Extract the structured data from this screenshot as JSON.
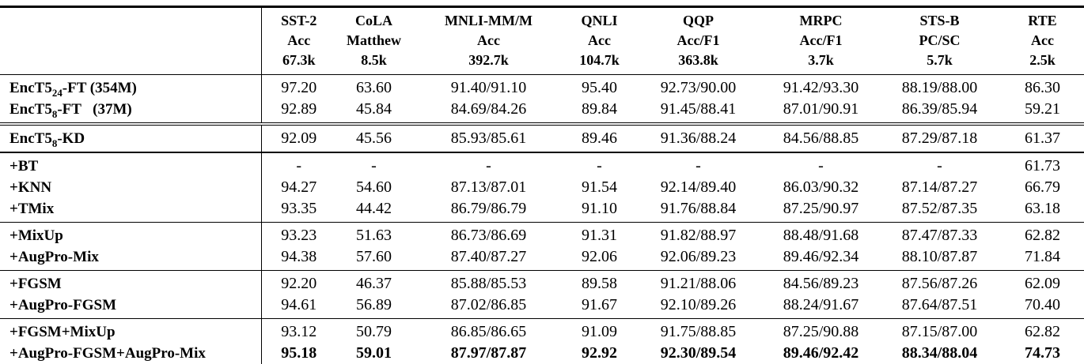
{
  "table": {
    "columns": [
      {
        "name": "SST-2",
        "metric": "Acc",
        "size": "67.3k"
      },
      {
        "name": "CoLA",
        "metric": "Matthew",
        "size": "8.5k"
      },
      {
        "name": "MNLI-MM/M",
        "metric": "Acc",
        "size": "392.7k"
      },
      {
        "name": "QNLI",
        "metric": "Acc",
        "size": "104.7k"
      },
      {
        "name": "QQP",
        "metric": "Acc/F1",
        "size": "363.8k"
      },
      {
        "name": "MRPC",
        "metric": "Acc/F1",
        "size": "3.7k"
      },
      {
        "name": "STS-B",
        "metric": "PC/SC",
        "size": "5.7k"
      },
      {
        "name": "RTE",
        "metric": "Acc",
        "size": "2.5k"
      }
    ],
    "groups": [
      {
        "rule": "none",
        "rows": [
          {
            "label": [
              {
                "t": "EncT5"
              },
              {
                "t": "24",
                "sub": true
              },
              {
                "t": "-FT (354M)"
              }
            ],
            "bold": false,
            "cells": [
              "97.20",
              "63.60",
              "91.40/91.10",
              "95.40",
              "92.73/90.00",
              "91.42/93.30",
              "88.19/88.00",
              "86.30"
            ]
          },
          {
            "label": [
              {
                "t": "EncT5"
              },
              {
                "t": "8",
                "sub": true
              },
              {
                "t": "-FT   (37M)"
              }
            ],
            "bold": false,
            "cells": [
              "92.89",
              "45.84",
              "84.69/84.26",
              "89.84",
              "91.45/88.41",
              "87.01/90.91",
              "86.39/85.94",
              "59.21"
            ]
          }
        ]
      },
      {
        "rule": "double",
        "rows": [
          {
            "label": [
              {
                "t": "EncT5"
              },
              {
                "t": "8",
                "sub": true
              },
              {
                "t": "-KD"
              }
            ],
            "bold": false,
            "cells": [
              "92.09",
              "45.56",
              "85.93/85.61",
              "89.46",
              "91.36/88.24",
              "84.56/88.85",
              "87.29/87.18",
              "61.37"
            ]
          }
        ]
      },
      {
        "rule": "heavy",
        "rows": [
          {
            "label": [
              {
                "t": "+BT"
              }
            ],
            "bold": false,
            "cells": [
              "-",
              "-",
              "-",
              "-",
              "-",
              "-",
              "-",
              "61.73"
            ]
          },
          {
            "label": [
              {
                "t": "+KNN"
              }
            ],
            "bold": false,
            "cells": [
              "94.27",
              "54.60",
              "87.13/87.01",
              "91.54",
              "92.14/89.40",
              "86.03/90.32",
              "87.14/87.27",
              "66.79"
            ]
          },
          {
            "label": [
              {
                "t": "+TMix"
              }
            ],
            "bold": false,
            "cells": [
              "93.35",
              "44.42",
              "86.79/86.79",
              "91.10",
              "91.76/88.84",
              "87.25/90.97",
              "87.52/87.35",
              "63.18"
            ]
          }
        ]
      },
      {
        "rule": "single",
        "rows": [
          {
            "label": [
              {
                "t": "+MixUp"
              }
            ],
            "bold": false,
            "cells": [
              "93.23",
              "51.63",
              "86.73/86.69",
              "91.31",
              "91.82/88.97",
              "88.48/91.68",
              "87.47/87.33",
              "62.82"
            ]
          },
          {
            "label": [
              {
                "t": "+AugPro-Mix"
              }
            ],
            "bold": false,
            "cells": [
              "94.38",
              "57.60",
              "87.40/87.27",
              "92.06",
              "92.06/89.23",
              "89.46/92.34",
              "88.10/87.87",
              "71.84"
            ]
          }
        ]
      },
      {
        "rule": "single",
        "rows": [
          {
            "label": [
              {
                "t": "+FGSM"
              }
            ],
            "bold": false,
            "cells": [
              "92.20",
              "46.37",
              "85.88/85.53",
              "89.58",
              "91.21/88.06",
              "84.56/89.23",
              "87.56/87.26",
              "62.09"
            ]
          },
          {
            "label": [
              {
                "t": "+AugPro-FGSM"
              }
            ],
            "bold": false,
            "cells": [
              "94.61",
              "56.89",
              "87.02/86.85",
              "91.67",
              "92.10/89.26",
              "88.24/91.67",
              "87.64/87.51",
              "70.40"
            ]
          }
        ]
      },
      {
        "rule": "single",
        "rows": [
          {
            "label": [
              {
                "t": "+FGSM+MixUp"
              }
            ],
            "bold": false,
            "cells": [
              "93.12",
              "50.79",
              "86.85/86.65",
              "91.09",
              "91.75/88.85",
              "87.25/90.88",
              "87.15/87.00",
              "62.82"
            ]
          },
          {
            "label": [
              {
                "t": "+AugPro-FGSM+AugPro-Mix"
              }
            ],
            "bold": true,
            "cells": [
              "95.18",
              "59.01",
              "87.97/87.87",
              "92.92",
              "92.30/89.54",
              "89.46/92.42",
              "88.34/88.04",
              "74.73"
            ]
          }
        ]
      }
    ]
  }
}
